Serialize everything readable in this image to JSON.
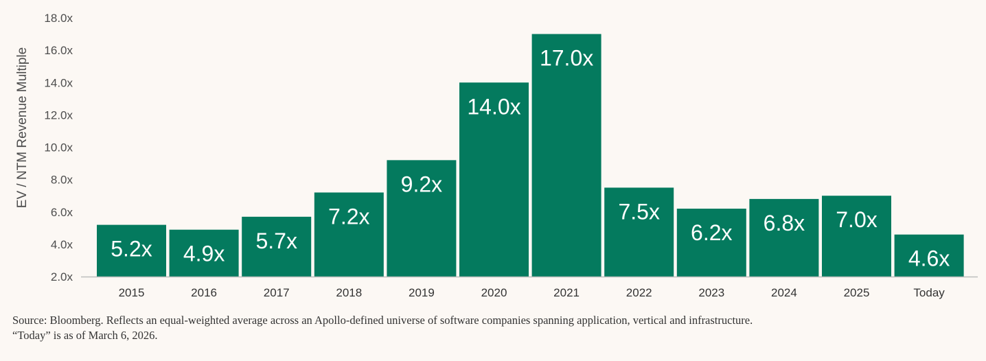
{
  "chart_data": {
    "type": "bar",
    "title": "",
    "xlabel": "",
    "ylabel": "EV / NTM Revenue Multiple",
    "ylim": [
      2.0,
      18.0
    ],
    "yticks": [
      2.0,
      4.0,
      6.0,
      8.0,
      10.0,
      12.0,
      14.0,
      16.0,
      18.0
    ],
    "ytick_labels": [
      "2.0x",
      "4.0x",
      "6.0x",
      "8.0x",
      "10.0x",
      "12.0x",
      "14.0x",
      "16.0x",
      "18.0x"
    ],
    "categories": [
      "2015",
      "2016",
      "2017",
      "2018",
      "2019",
      "2020",
      "2021",
      "2022",
      "2023",
      "2024",
      "2025",
      "Today"
    ],
    "values": [
      5.2,
      4.9,
      5.7,
      7.2,
      9.2,
      14.0,
      17.0,
      7.5,
      6.2,
      6.8,
      7.0,
      4.6
    ],
    "value_labels": [
      "5.2x",
      "4.9x",
      "5.7x",
      "7.2x",
      "9.2x",
      "14.0x",
      "17.0x",
      "7.5x",
      "6.2x",
      "6.8x",
      "7.0x",
      "4.6x"
    ],
    "grid": false,
    "bar_color": "#047a5e",
    "axis_color": "#bdbdbd"
  },
  "footnote": {
    "line1": "Source: Bloomberg. Reflects an equal-weighted average across an Apollo-defined universe of software companies spanning application, vertical and infrastructure.",
    "line2": "“Today” is as of March 6, 2026."
  }
}
